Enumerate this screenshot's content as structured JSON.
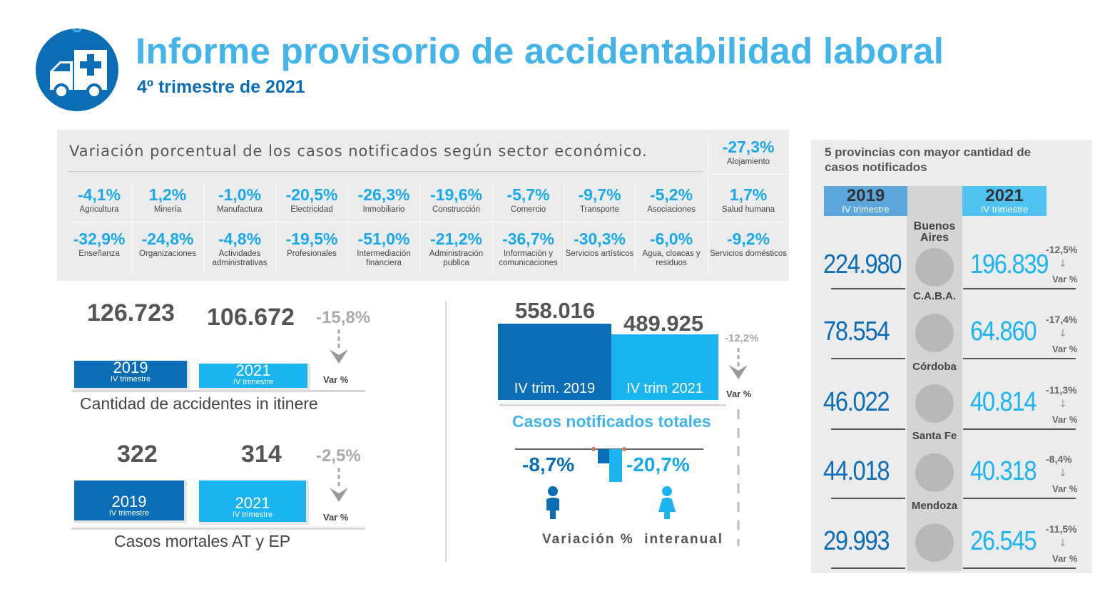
{
  "header": {
    "title": "Informe provisorio de accidentabilidad laboral",
    "subtitle": "4º trimestre de 2021",
    "icon": "ambulance-icon"
  },
  "sector": {
    "title": "Variación porcentual de los casos notificados según sector económico.",
    "items": [
      {
        "value": "-4,1%",
        "label": "Agricultura"
      },
      {
        "value": "1,2%",
        "label": "Minería"
      },
      {
        "value": "-1,0%",
        "label": "Manufactura"
      },
      {
        "value": "-20,5%",
        "label": "Electricidad"
      },
      {
        "value": "-26,3%",
        "label": "Inmobiliario"
      },
      {
        "value": "-19,6%",
        "label": "Construcción"
      },
      {
        "value": "-5,7%",
        "label": "Comercio"
      },
      {
        "value": "-9,7%",
        "label": "Transporte"
      },
      {
        "value": "-5,2%",
        "label": "Asociaciones"
      },
      {
        "value": "1,7%",
        "label": "Salud humana"
      },
      {
        "value": "-32,9%",
        "label": "Enseñanza"
      },
      {
        "value": "-24,8%",
        "label": "Organizaciones"
      },
      {
        "value": "-4,8%",
        "label": "Actividades administrativas"
      },
      {
        "value": "-19,5%",
        "label": "Profesionales"
      },
      {
        "value": "-51,0%",
        "label": "Intermediación financiera"
      },
      {
        "value": "-21,2%",
        "label": "Administración publica"
      },
      {
        "value": "-36,7%",
        "label": "Información y comunicaciones"
      },
      {
        "value": "-30,3%",
        "label": "Servicios artísticos"
      },
      {
        "value": "-6,0%",
        "label": "Agua, cloacas y residuos"
      },
      {
        "value": "-9,2%",
        "label": "Servicios domésticos"
      }
    ],
    "extra": {
      "value": "-27,3%",
      "label": "Alojamiento"
    }
  },
  "itinere": {
    "v2019": "126.723",
    "v2021": "106.672",
    "var": "-15,8%",
    "y2019": "2019",
    "y2021": "2021",
    "sub": "IV trimestre",
    "var_label": "Var %",
    "caption": "Cantidad de accidentes in itinere"
  },
  "mortales": {
    "v2019": "322",
    "v2021": "314",
    "var": "-2,5%",
    "y2019": "2019",
    "y2021": "2021",
    "sub": "IV trimestre",
    "var_label": "Var %",
    "caption": "Casos mortales AT y EP"
  },
  "totales": {
    "v2019": "558.016",
    "v2021": "489.925",
    "var": "-12,2%",
    "bar2019_label": "IV trim. 2019",
    "bar2021_label": "IV trim 2021",
    "var_label": "Var %",
    "caption": "Casos notificados totales",
    "male_var": "-8,7%",
    "female_var": "-20,7%",
    "variacion_label": "Variación %  interanual"
  },
  "provincias": {
    "title": "5 provincias con mayor cantidad de casos notificados",
    "y2019": "2019",
    "y2021": "2021",
    "sub": "IV trimestre",
    "var_label": "Var %",
    "items": [
      {
        "name": "Buenos Aires",
        "v2019": "224.980",
        "v2021": "196.839",
        "var": "-12,5%"
      },
      {
        "name": "C.A.B.A.",
        "v2019": "78.554",
        "v2021": "64.860",
        "var": "-17,4%"
      },
      {
        "name": "Córdoba",
        "v2019": "46.022",
        "v2021": "40.814",
        "var": "-11,3%"
      },
      {
        "name": "Santa Fe",
        "v2019": "44.018",
        "v2021": "40.318",
        "var": "-8,4%"
      },
      {
        "name": "Mendoza",
        "v2019": "29.993",
        "v2021": "26.545",
        "var": "-11,5%"
      }
    ]
  },
  "colors": {
    "dark_blue": "#0a6db5",
    "light_blue": "#1aa9e8",
    "title_blue": "#43b4ea",
    "grey": "#555555"
  }
}
